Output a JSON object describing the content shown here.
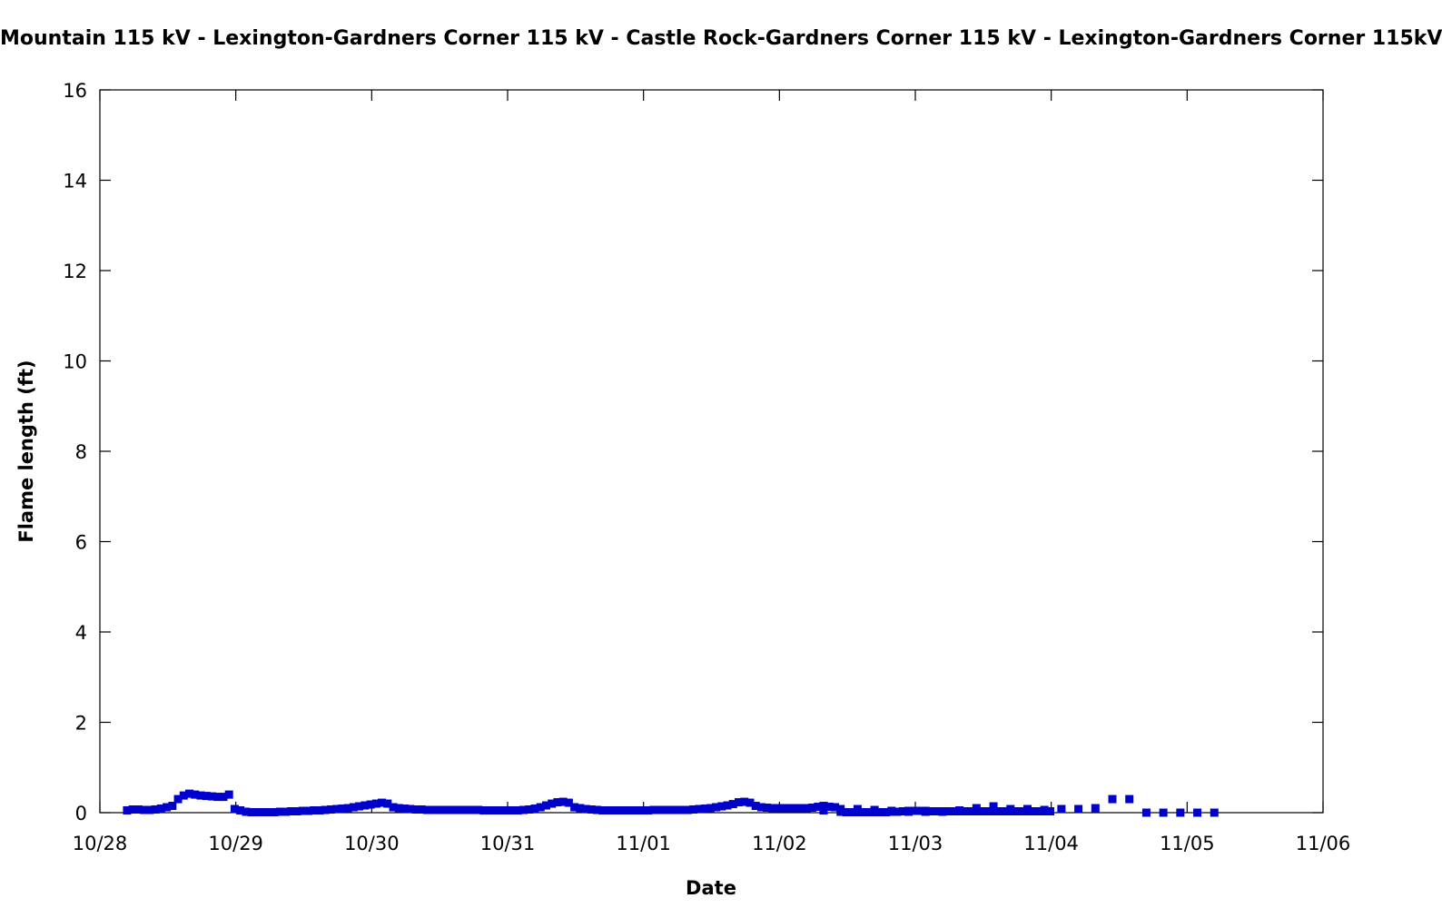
{
  "chart_data": {
    "type": "scatter",
    "title": "Mountain 115 kV - Lexington-Gardners Corner 115 kV - Castle Rock-Gardners Corner 115 kV - Lexington-Gardners Corner 115kV",
    "xlabel": "Date",
    "ylabel": "Flame length (ft)",
    "ylim": [
      0,
      16
    ],
    "xlim_days": [
      0,
      9
    ],
    "yticks": [
      0,
      2,
      4,
      6,
      8,
      10,
      12,
      14,
      16
    ],
    "xticks": [
      {
        "day": 0,
        "label": "10/28"
      },
      {
        "day": 1,
        "label": "10/29"
      },
      {
        "day": 2,
        "label": "10/30"
      },
      {
        "day": 3,
        "label": "10/31"
      },
      {
        "day": 4,
        "label": "11/01"
      },
      {
        "day": 5,
        "label": "11/02"
      },
      {
        "day": 6,
        "label": "11/03"
      },
      {
        "day": 7,
        "label": "11/04"
      },
      {
        "day": 8,
        "label": "11/05"
      },
      {
        "day": 9,
        "label": "11/06"
      }
    ],
    "marker_color": "#0000cc",
    "series": [
      {
        "name": "Flame length",
        "hourly": {
          "start_day": 0.0,
          "step_days": 0.04167,
          "values": [
            0.05,
            0.07,
            0.07,
            0.06,
            0.06,
            0.07,
            0.09,
            0.12,
            0.15,
            0.3,
            0.38,
            0.42,
            0.4,
            0.38,
            0.37,
            0.36,
            0.35,
            0.35,
            0.4,
            0.08,
            0.05,
            0.02,
            0.01,
            0.01,
            0.01,
            0.01,
            0.01,
            0.02,
            0.02,
            0.03,
            0.03,
            0.04,
            0.04,
            0.05,
            0.05,
            0.06,
            0.07,
            0.08,
            0.09,
            0.1,
            0.12,
            0.14,
            0.16,
            0.18,
            0.2,
            0.22,
            0.2,
            0.12,
            0.1,
            0.09,
            0.08,
            0.07,
            0.07,
            0.06,
            0.06,
            0.06,
            0.06,
            0.06,
            0.06,
            0.06,
            0.06,
            0.06,
            0.06,
            0.05,
            0.05,
            0.05,
            0.05,
            0.05,
            0.05,
            0.05,
            0.06,
            0.07,
            0.09,
            0.12,
            0.16,
            0.2,
            0.23,
            0.24,
            0.22,
            0.12,
            0.1,
            0.08,
            0.07,
            0.06,
            0.05,
            0.05,
            0.05,
            0.05,
            0.05,
            0.05,
            0.05,
            0.05,
            0.05,
            0.06,
            0.06,
            0.06,
            0.06,
            0.06,
            0.06,
            0.06,
            0.07,
            0.08,
            0.09,
            0.1,
            0.12,
            0.14,
            0.16,
            0.19,
            0.23,
            0.24,
            0.22,
            0.15,
            0.12,
            0.11,
            0.1,
            0.1,
            0.1,
            0.1,
            0.1,
            0.1,
            0.1,
            0.11,
            0.13,
            0.15,
            0.13,
            0.12,
            0.02,
            0.01,
            0.01,
            0.01,
            0.01,
            0.01,
            0.01,
            0.01,
            0.01,
            0.02,
            0.02,
            0.03,
            0.04,
            0.04,
            0.04,
            0.04,
            0.03,
            0.03,
            0.03,
            0.03,
            0.03,
            0.03,
            0.03,
            0.03,
            0.03,
            0.03,
            0.03,
            0.03,
            0.03,
            0.03,
            0.03,
            0.03,
            0.03,
            0.03,
            0.03,
            0.03,
            0.03,
            0.03
          ]
        },
        "threehourly": {
          "start_day": 5.125,
          "step_days": 0.125,
          "values": [
            0.05,
            0.08,
            0.08,
            0.06,
            0.04,
            0.02,
            0.02,
            0.02,
            0.05,
            0.1,
            0.14,
            0.08,
            0.08,
            0.06,
            0.08,
            0.08,
            0.1,
            0.3,
            0.3,
            0.0,
            0.0,
            0.0,
            0.0,
            0.0
          ]
        }
      }
    ]
  }
}
